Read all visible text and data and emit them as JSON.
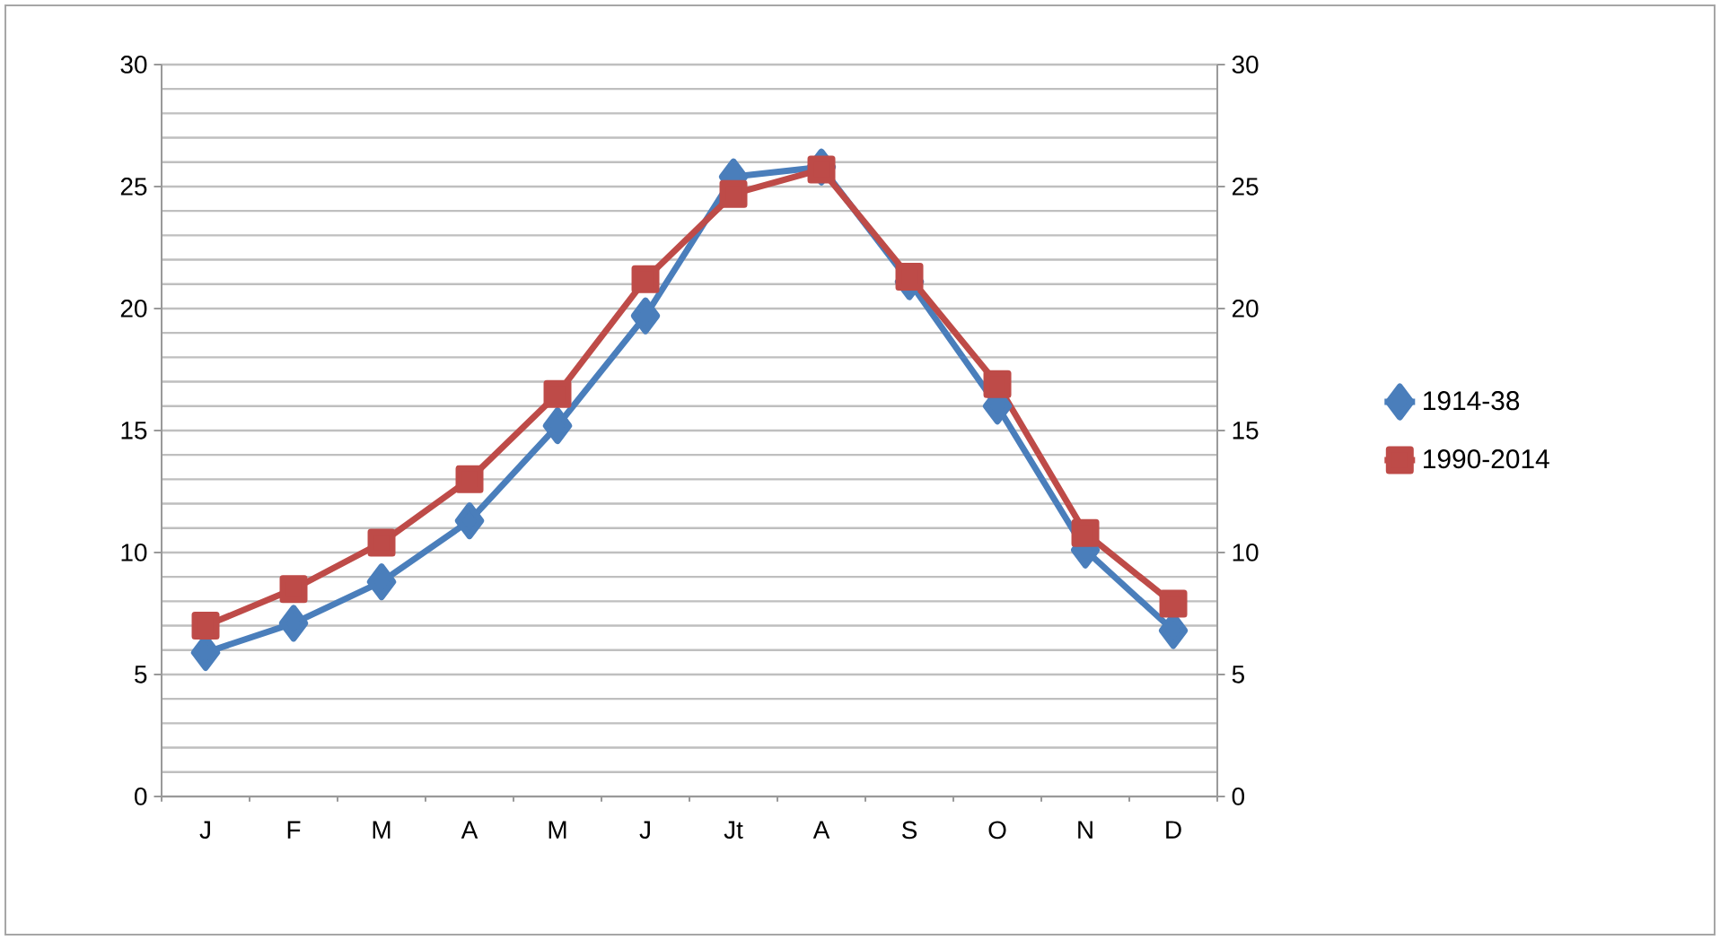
{
  "chart_data": {
    "type": "line",
    "categories": [
      "J",
      "F",
      "M",
      "A",
      "M",
      "J",
      "Jt",
      "A",
      "S",
      "O",
      "N",
      "D"
    ],
    "series": [
      {
        "name": "1914-38",
        "color": "#4a7ebb",
        "marker": "diamond",
        "values": [
          5.9,
          7.1,
          8.8,
          11.3,
          15.2,
          19.7,
          25.4,
          25.8,
          21.1,
          16.0,
          10.1,
          6.8
        ]
      },
      {
        "name": "1990-2014",
        "color": "#be4b48",
        "marker": "square",
        "values": [
          7.0,
          8.5,
          10.4,
          13.0,
          16.5,
          21.2,
          24.7,
          25.7,
          21.3,
          16.9,
          10.8,
          7.9
        ]
      }
    ],
    "ylim": [
      0,
      30
    ],
    "yticks": [
      0,
      5,
      10,
      15,
      20,
      25,
      30
    ],
    "y2lim": [
      0,
      30
    ],
    "y2ticks": [
      0,
      5,
      10,
      15,
      20,
      25,
      30
    ],
    "grid": "y",
    "legend": "right",
    "line_style": "solid"
  }
}
